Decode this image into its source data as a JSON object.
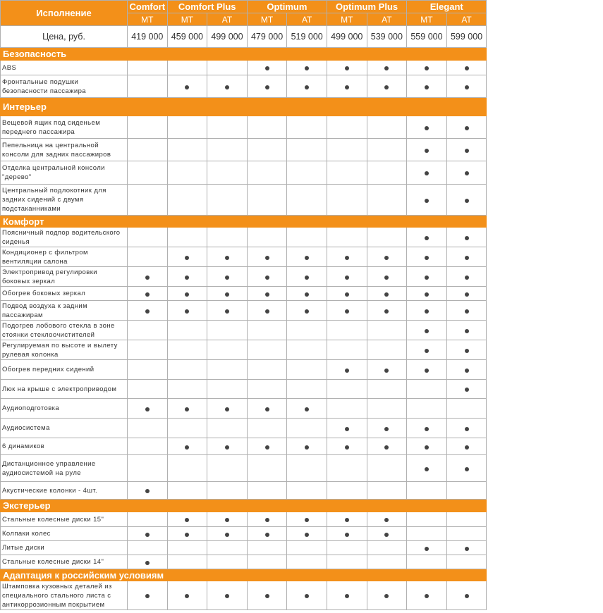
{
  "header": {
    "label": "Исполнение",
    "groups": [
      {
        "name": "Comfort",
        "variants": [
          "MT"
        ]
      },
      {
        "name": "Comfort Plus",
        "variants": [
          "MT",
          "AT"
        ]
      },
      {
        "name": "Optimum",
        "variants": [
          "MT",
          "AT"
        ]
      },
      {
        "name": "Optimum Plus",
        "variants": [
          "MT",
          "AT"
        ]
      },
      {
        "name": "Elegant",
        "variants": [
          "MT",
          "AT"
        ]
      }
    ]
  },
  "price": {
    "label": "Цена, руб.",
    "values": [
      "419 000",
      "459 000",
      "499 000",
      "479 000",
      "519 000",
      "499 000",
      "539 000",
      "559 000",
      "599 000"
    ]
  },
  "sections": [
    {
      "title": "Безопасность",
      "rows": [
        {
          "label": "ABS",
          "options": [
            false,
            false,
            false,
            true,
            true,
            true,
            true,
            true,
            true
          ]
        },
        {
          "label": "Фронтальные подушки безопасности пассажира",
          "options": [
            false,
            true,
            true,
            true,
            true,
            true,
            true,
            true,
            true
          ]
        }
      ]
    },
    {
      "title": "Интерьер",
      "rows": [
        {
          "label": "Вещевой ящик под сиденьем переднего пассажира",
          "options": [
            false,
            false,
            false,
            false,
            false,
            false,
            false,
            true,
            true
          ]
        },
        {
          "label": "Пепельница на центральной консоли для задних пассажиров",
          "options": [
            false,
            false,
            false,
            false,
            false,
            false,
            false,
            true,
            true
          ]
        },
        {
          "label": "Отделка центральной консоли \"дерево\"",
          "options": [
            false,
            false,
            false,
            false,
            false,
            false,
            false,
            true,
            true
          ]
        },
        {
          "label": "Центральный подлокотник для задних сидений с двумя подстаканниками",
          "options": [
            false,
            false,
            false,
            false,
            false,
            false,
            false,
            true,
            true
          ]
        }
      ]
    },
    {
      "title": "Комфорт",
      "rows": [
        {
          "label": "Поясничный подпор водительского сиденья",
          "options": [
            false,
            false,
            false,
            false,
            false,
            false,
            false,
            true,
            true
          ]
        },
        {
          "label": "Кондиционер с фильтром вентиляции салона",
          "options": [
            false,
            true,
            true,
            true,
            true,
            true,
            true,
            true,
            true
          ]
        },
        {
          "label": "Электропривод регулировки боковых зеркал",
          "options": [
            true,
            true,
            true,
            true,
            true,
            true,
            true,
            true,
            true
          ]
        },
        {
          "label": "Обогрев боковых зеркал",
          "options": [
            true,
            true,
            true,
            true,
            true,
            true,
            true,
            true,
            true
          ]
        },
        {
          "label": "Подвод воздуха к задним пассажирам",
          "options": [
            true,
            true,
            true,
            true,
            true,
            true,
            true,
            true,
            true
          ]
        },
        {
          "label": "Подогрев лобового стекла в зоне стоянки стеклоочистителей",
          "options": [
            false,
            false,
            false,
            false,
            false,
            false,
            false,
            true,
            true
          ]
        },
        {
          "label": "Регулируемая по высоте и вылету рулевая колонка",
          "options": [
            false,
            false,
            false,
            false,
            false,
            false,
            false,
            true,
            true
          ]
        },
        {
          "label": "Обогрев передних сидений",
          "options": [
            false,
            false,
            false,
            false,
            false,
            true,
            true,
            true,
            true
          ]
        },
        {
          "label": "Люк на крыше с электроприводом",
          "options": [
            false,
            false,
            false,
            false,
            false,
            false,
            false,
            false,
            true
          ]
        },
        {
          "label": "Аудиоподготовка",
          "options": [
            true,
            true,
            true,
            true,
            true,
            false,
            false,
            false,
            false
          ]
        },
        {
          "label": "Аудиосистема",
          "options": [
            false,
            false,
            false,
            false,
            false,
            true,
            true,
            true,
            true
          ]
        },
        {
          "label": "6 динамиков",
          "options": [
            false,
            true,
            true,
            true,
            true,
            true,
            true,
            true,
            true
          ]
        },
        {
          "label": "Дистанционное управление аудиосистемой на руле",
          "options": [
            false,
            false,
            false,
            false,
            false,
            false,
            false,
            true,
            true
          ]
        },
        {
          "label": "Акустические колонки - 4шт.",
          "options": [
            true,
            false,
            false,
            false,
            false,
            false,
            false,
            false,
            false
          ]
        }
      ]
    },
    {
      "title": "Экстерьер",
      "rows": [
        {
          "label": "Стальные колесные диски 15\"",
          "options": [
            false,
            true,
            true,
            true,
            true,
            true,
            true,
            false,
            false
          ]
        },
        {
          "label": "Колпаки колес",
          "options": [
            true,
            true,
            true,
            true,
            true,
            true,
            true,
            false,
            false
          ]
        },
        {
          "label": "Литые диски",
          "options": [
            false,
            false,
            false,
            false,
            false,
            false,
            false,
            true,
            true
          ]
        },
        {
          "label": "Стальные колесные диски 14\"",
          "options": [
            true,
            false,
            false,
            false,
            false,
            false,
            false,
            false,
            false
          ]
        }
      ]
    },
    {
      "title": "Адаптация к российским условиям",
      "rows": [
        {
          "label": "Штамповка кузовных деталей из специального стального листа с антикоррозионным покрытием",
          "options": [
            true,
            true,
            true,
            true,
            true,
            true,
            true,
            true,
            true
          ]
        }
      ]
    }
  ]
}
